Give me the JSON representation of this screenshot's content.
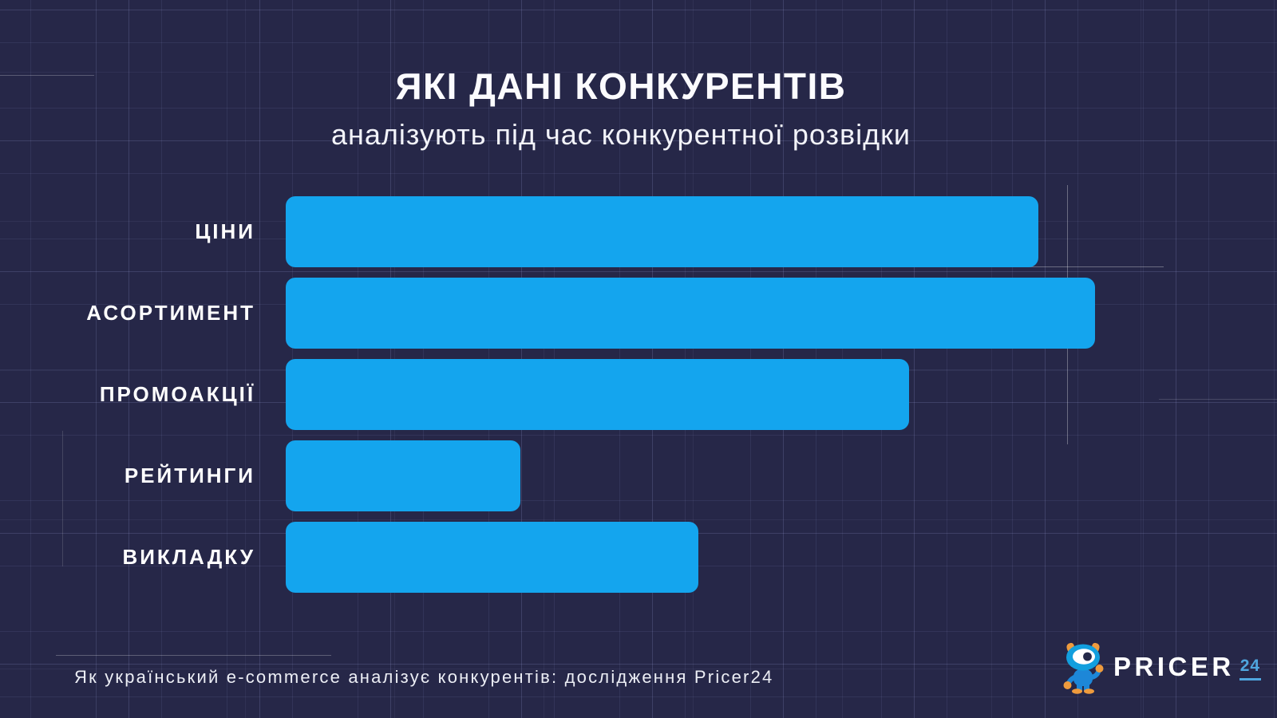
{
  "header": {
    "title": "ЯКІ ДАНІ КОНКУРЕНТІВ",
    "subtitle": "аналізують під час конкурентної розвідки"
  },
  "chart_data": {
    "type": "bar",
    "orientation": "horizontal",
    "title": "ЯКІ ДАНІ КОНКУРЕНТІВ",
    "subtitle": "аналізують під час конкурентної розвідки",
    "categories": [
      "ЦІНИ",
      "АСОРТИМЕНТ",
      "ПРОМОАКЦІЇ",
      "РЕЙТИНГИ",
      "ВИКЛАДКУ"
    ],
    "values": [
      93,
      100,
      77,
      29,
      51
    ],
    "value_scale_note": "no numeric labels shown in image; values are bar lengths as % of longest bar (АСОРТИМЕНТ = 100)",
    "xlim": [
      0,
      100
    ],
    "value_labels_shown": false,
    "grid": true,
    "legend": "none",
    "bar_color": "#14a5ee",
    "background_color": "#262748",
    "label_color": "#ffffff"
  },
  "footer": {
    "caption": "Як український e-commerce аналізує конкурентів: дослідження Pricer24",
    "logo": {
      "brand": "PRICER",
      "suffix": "24",
      "mascot": "one-eyed cyclops mascot",
      "brand_color": "#ffffff",
      "suffix_color": "#4fa6de"
    }
  },
  "colors": {
    "background": "#262748",
    "bar": "#14a5ee",
    "grid_line": "#a0a6de",
    "text": "#ffffff",
    "mascot_blue_head": "#129fde",
    "mascot_blue_body": "#1d87d8",
    "mascot_orange": "#ee9b3d"
  }
}
